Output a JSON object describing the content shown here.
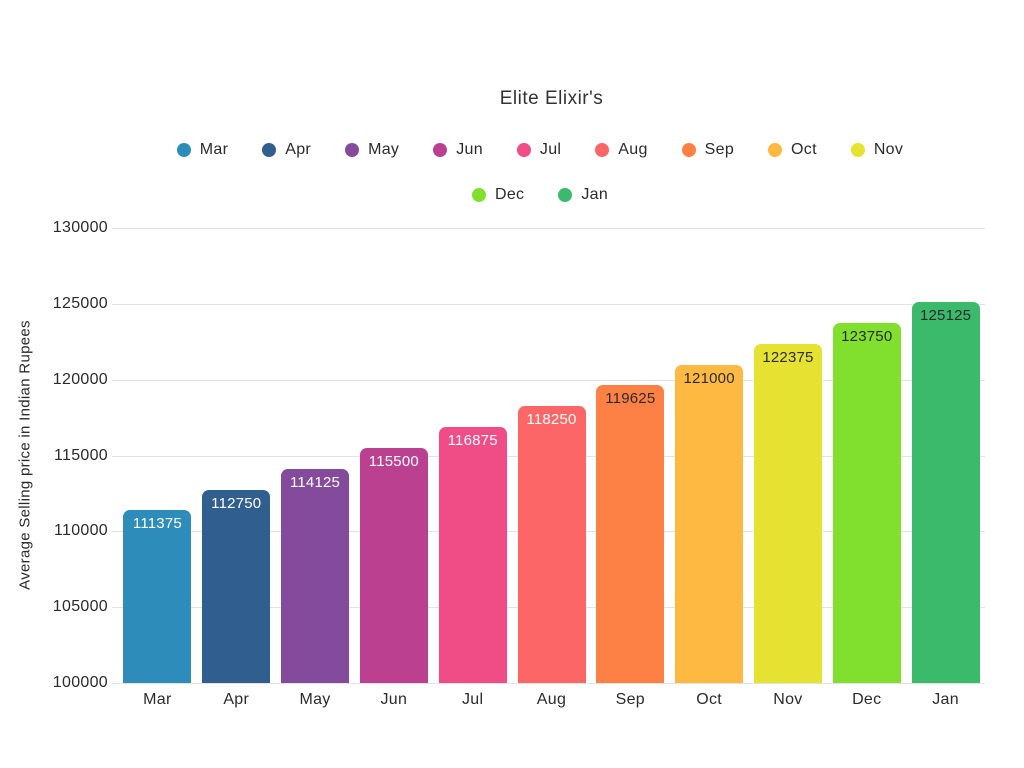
{
  "chart_data": {
    "type": "bar",
    "title": "Elite Elixir's",
    "xlabel": "",
    "ylabel": "Average Selling price in Indian Rupees",
    "categories": [
      "Mar",
      "Apr",
      "May",
      "Jun",
      "Jul",
      "Aug",
      "Sep",
      "Oct",
      "Nov",
      "Dec",
      "Jan"
    ],
    "values": [
      111375,
      112750,
      114125,
      115500,
      116875,
      118250,
      119625,
      121000,
      122375,
      123750,
      125125
    ],
    "bar_colors": [
      "#2E8CBA",
      "#2F5E8F",
      "#844A9B",
      "#BC4090",
      "#F04C85",
      "#FD6666",
      "#FD8144",
      "#FDB942",
      "#E5E231",
      "#80E02D",
      "#3BBA6B"
    ],
    "value_label_colors": [
      "#FFFFFF",
      "#FFFFFF",
      "#FFFFFF",
      "#FFFFFF",
      "#FFFFFF",
      "#FFFFFF",
      "#2B2B2B",
      "#2B2B2B",
      "#2B2B2B",
      "#2B2B2B",
      "#2B2B2B"
    ],
    "ylim": [
      100000,
      130000
    ],
    "yticks": [
      100000,
      105000,
      110000,
      115000,
      120000,
      125000,
      130000
    ],
    "grid": true,
    "gridline_color": "#E3E3E3",
    "background_color": "#FFFFFF",
    "text_color": "#2B2B2B",
    "legend_position": "top",
    "legend_rows": [
      [
        "Mar",
        "Apr",
        "May",
        "Jun",
        "Jul",
        "Aug",
        "Sep",
        "Oct",
        "Nov"
      ],
      [
        "Dec",
        "Jan"
      ]
    ]
  }
}
